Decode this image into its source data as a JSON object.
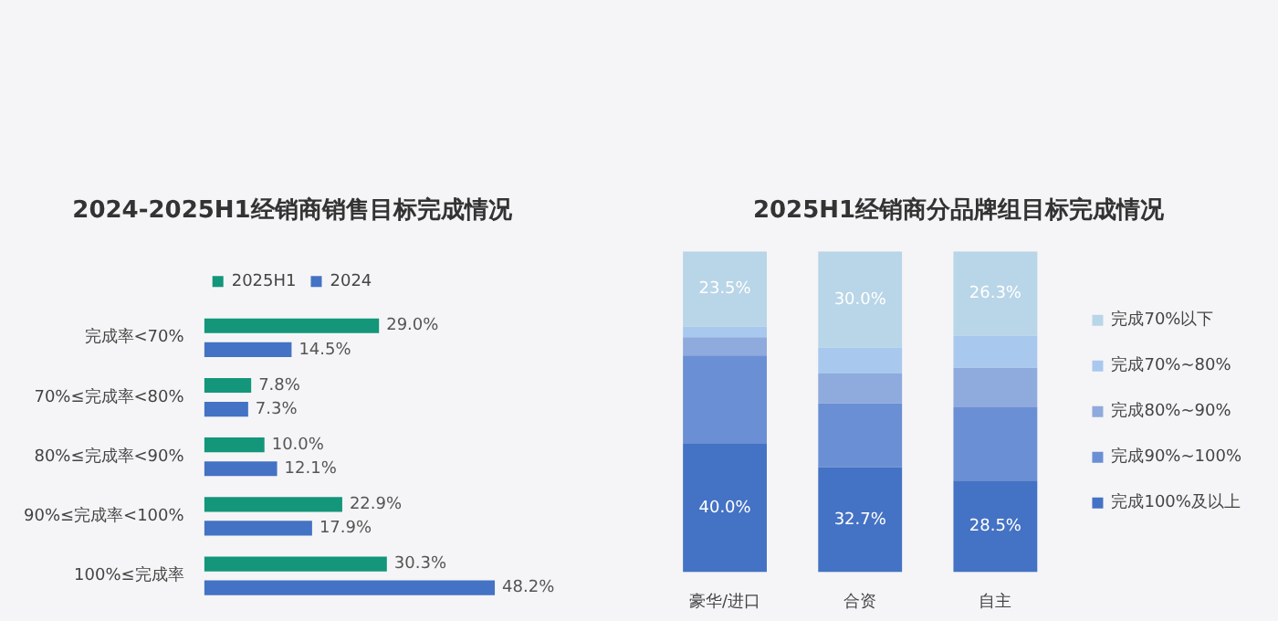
{
  "chart_data": [
    {
      "type": "bar",
      "title": "2024-2025H1经销商销售目标完成情况",
      "orientation": "horizontal",
      "categories": [
        "完成率<70%",
        "70%≤完成率<80%",
        "80%≤完成率<90%",
        "90%≤完成率<100%",
        "100%≤完成率"
      ],
      "series": [
        {
          "name": "2025H1",
          "color": "#13967a",
          "values": [
            29.0,
            7.8,
            10.0,
            22.9,
            30.3
          ],
          "value_labels": [
            "29.0%",
            "7.8%",
            "10.0%",
            "22.9%",
            "30.3%"
          ]
        },
        {
          "name": "2024",
          "color": "#4472c4",
          "values": [
            14.5,
            7.3,
            12.1,
            17.9,
            48.2
          ],
          "value_labels": [
            "14.5%",
            "7.3%",
            "12.1%",
            "17.9%",
            "48.2%"
          ]
        }
      ],
      "legend": "top",
      "tick_labels": "y"
    },
    {
      "type": "bar",
      "title": "2025H1经销商分品牌组目标完成情况",
      "stacked": true,
      "categories": [
        "豪华/进口",
        "合资",
        "自主"
      ],
      "ylim": [
        0,
        100
      ],
      "series": [
        {
          "name": "完成100%及以上",
          "color": "#4472c4",
          "values": [
            40.0,
            32.7,
            28.5
          ],
          "value_labels": [
            "40.0%",
            "32.7%",
            "28.5%"
          ]
        },
        {
          "name": "完成90%~100%",
          "color": "#6a8fd4",
          "values": [
            27.5,
            19.9,
            22.9
          ]
        },
        {
          "name": "完成80%~90%",
          "color": "#8faadc",
          "values": [
            5.7,
            9.3,
            12.3
          ]
        },
        {
          "name": "完成70%~80%",
          "color": "#a9c8ee",
          "values": [
            3.3,
            8.1,
            10.0
          ]
        },
        {
          "name": "完成70%以下",
          "color": "#b9d5e8",
          "values": [
            23.5,
            30.0,
            26.3
          ],
          "value_labels": [
            "23.5%",
            "30.0%",
            "26.3%"
          ]
        }
      ],
      "legend": "right",
      "tick_labels": "x"
    }
  ]
}
